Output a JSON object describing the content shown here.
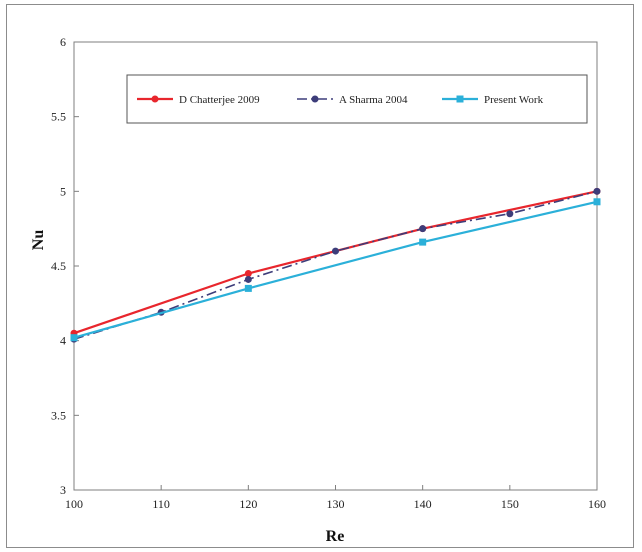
{
  "chart_data": {
    "type": "line",
    "title": "",
    "xlabel": "Re",
    "ylabel": "Nu",
    "xlim": [
      100,
      160
    ],
    "ylim": [
      3,
      6
    ],
    "x_ticks": [
      100,
      110,
      120,
      130,
      140,
      150,
      160
    ],
    "y_ticks": [
      3,
      3.5,
      4,
      4.5,
      5,
      5.5,
      6
    ],
    "y_tick_labels": [
      "3",
      "3.5",
      "4",
      "4.5",
      "5",
      "5.5",
      "6"
    ],
    "grid": false,
    "legend_position": "top-right",
    "series": [
      {
        "name": "D Chatterjee 2009",
        "color": "#e8262d",
        "line_style": "solid",
        "marker": "circle",
        "x": [
          100,
          120,
          140,
          160
        ],
        "y": [
          4.05,
          4.45,
          4.75,
          5.0
        ]
      },
      {
        "name": "A Sharma 2004",
        "color": "#3d3d7a",
        "line_style": "dash-dot",
        "marker": "circle",
        "x": [
          100,
          110,
          120,
          130,
          140,
          150,
          160
        ],
        "y": [
          4.01,
          4.19,
          4.41,
          4.6,
          4.75,
          4.85,
          5.0
        ]
      },
      {
        "name": "Present Work",
        "color": "#2bb0d9",
        "line_style": "solid",
        "marker": "square",
        "x": [
          100,
          120,
          140,
          160
        ],
        "y": [
          4.02,
          4.35,
          4.66,
          4.93
        ]
      }
    ]
  }
}
